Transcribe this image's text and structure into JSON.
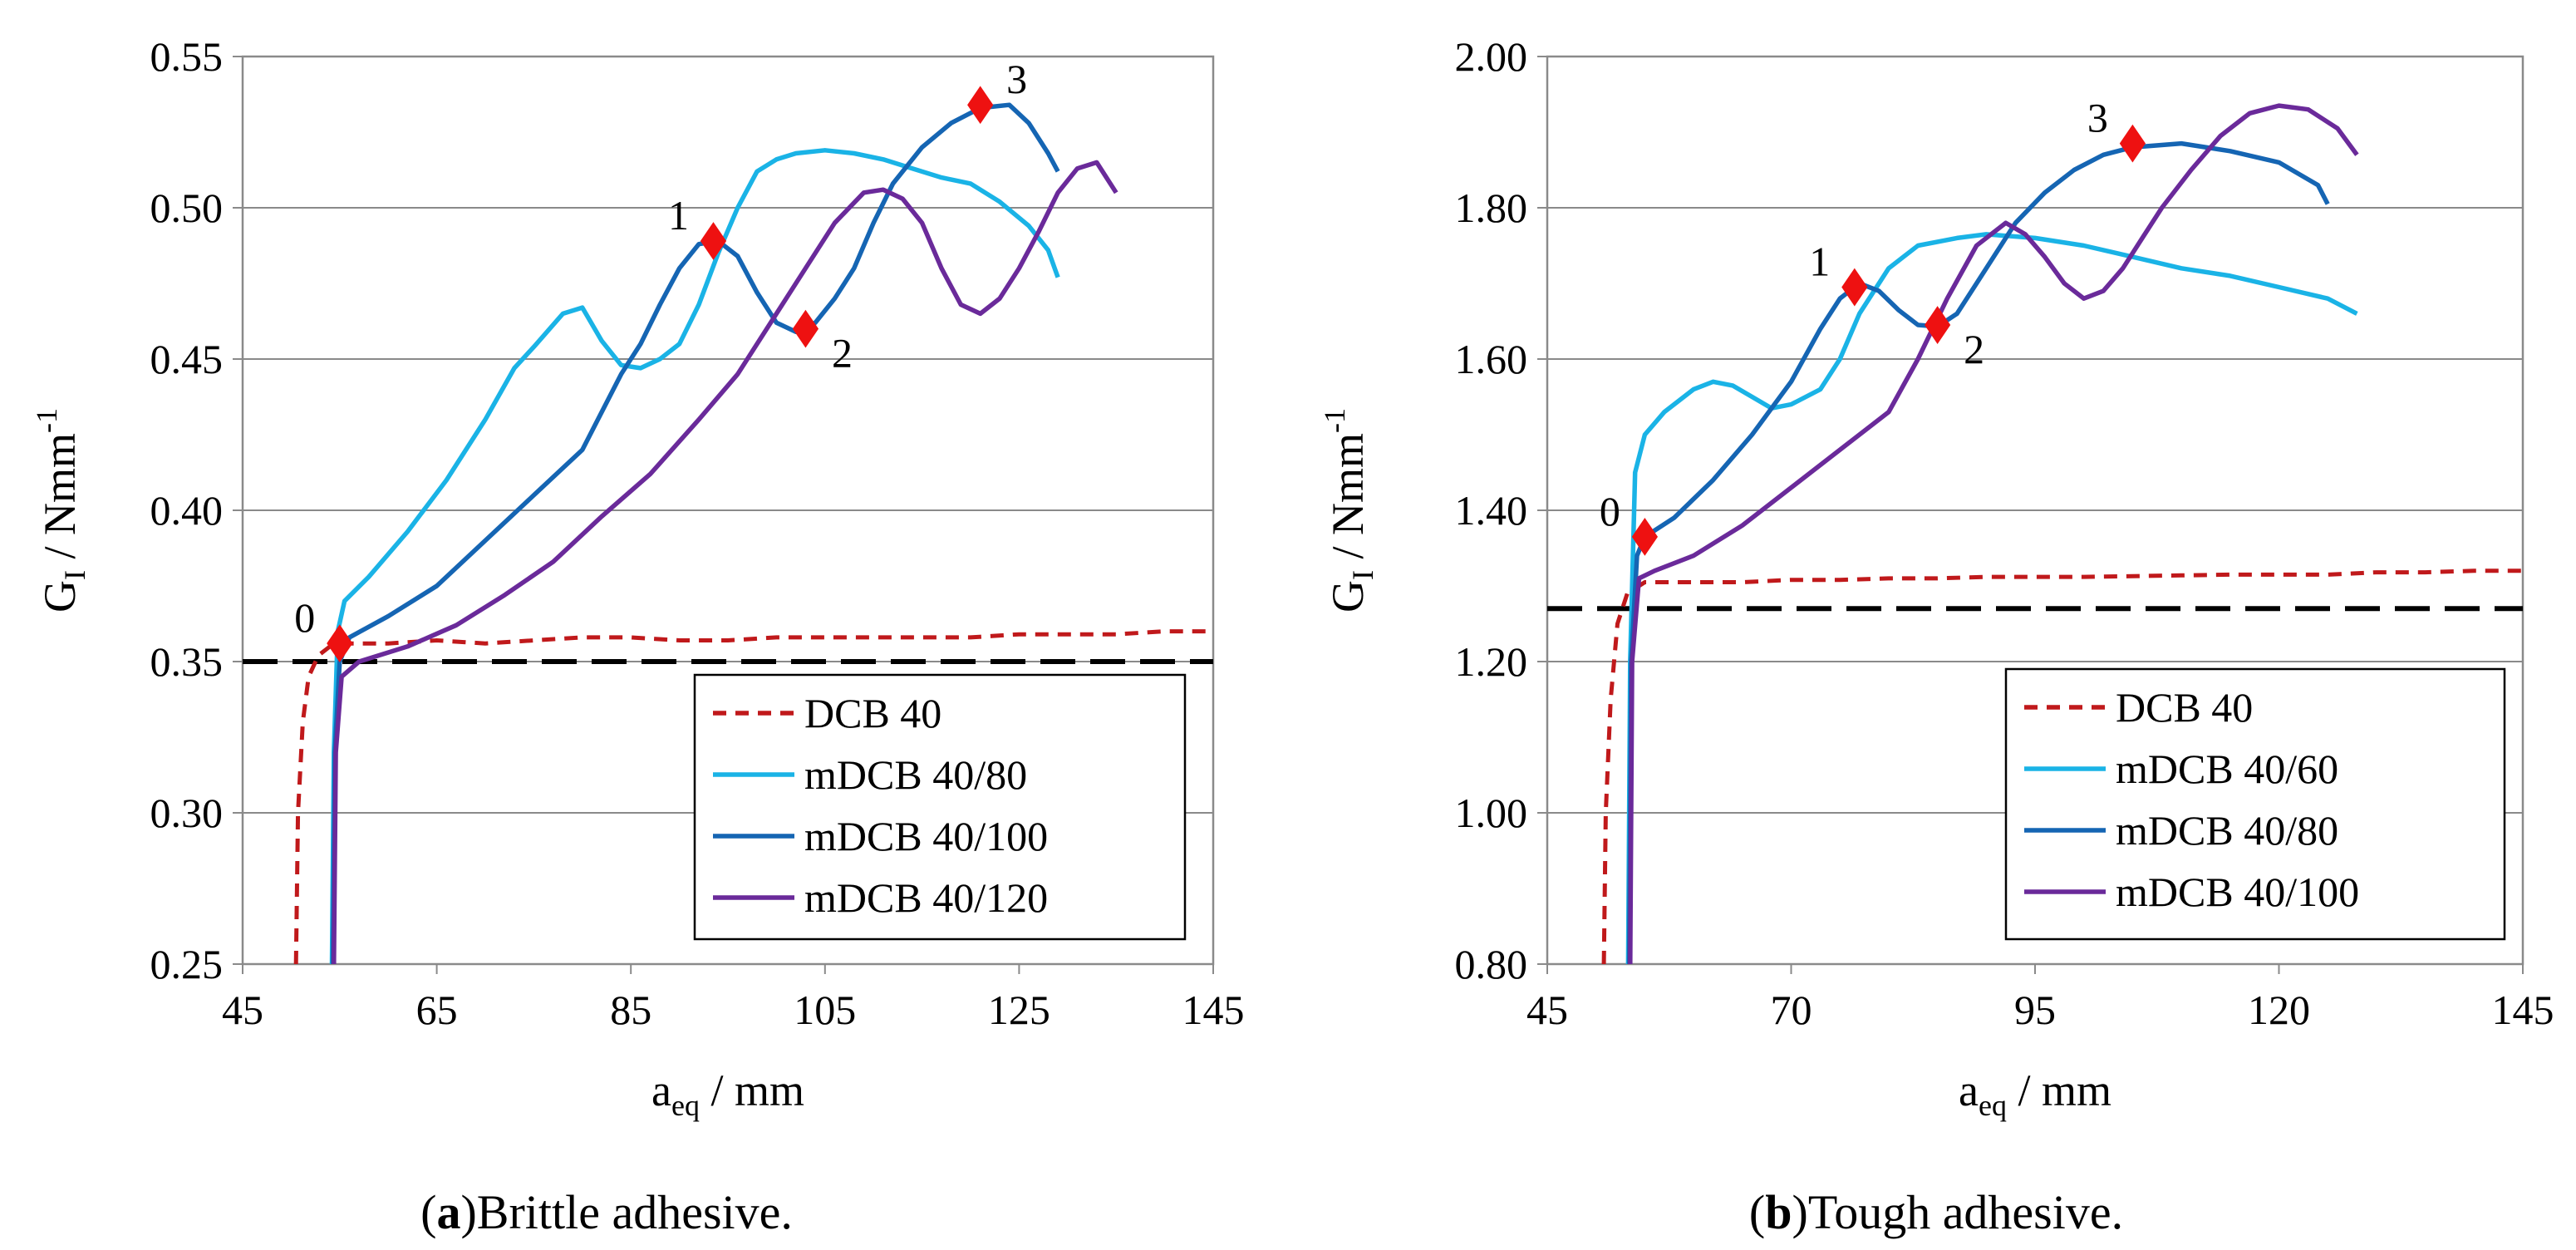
{
  "chart_data": [
    {
      "type": "line",
      "caption_letter": "a",
      "caption_text": "Brittle adhesive.",
      "xlabel": "a",
      "xlabel_sub": "eq",
      "xlabel_unit": " / mm",
      "ylabel": "G",
      "ylabel_sub": "I",
      "ylabel_unit": " / Nmm",
      "ylabel_sup": "-1",
      "xlim": [
        45,
        145
      ],
      "ylim": [
        0.25,
        0.55
      ],
      "xticks": [
        45,
        65,
        85,
        105,
        125,
        145
      ],
      "yticks": [
        "0.25",
        "0.30",
        "0.35",
        "0.40",
        "0.45",
        "0.50",
        "0.55"
      ],
      "grid": "horizontal",
      "legend_position": "bottom-right",
      "reference_line": 0.35,
      "series": [
        {
          "name": "DCB 40",
          "color": "#c0191b",
          "dash": "dashed",
          "points": [
            [
              50.5,
              0.25
            ],
            [
              50.7,
              0.3
            ],
            [
              51.2,
              0.33
            ],
            [
              51.8,
              0.345
            ],
            [
              52.8,
              0.352
            ],
            [
              54,
              0.355
            ],
            [
              56,
              0.356
            ],
            [
              60,
              0.356
            ],
            [
              65,
              0.357
            ],
            [
              70,
              0.356
            ],
            [
              75,
              0.357
            ],
            [
              80,
              0.358
            ],
            [
              85,
              0.358
            ],
            [
              90,
              0.357
            ],
            [
              95,
              0.357
            ],
            [
              100,
              0.358
            ],
            [
              105,
              0.358
            ],
            [
              110,
              0.358
            ],
            [
              115,
              0.358
            ],
            [
              120,
              0.358
            ],
            [
              125,
              0.359
            ],
            [
              130,
              0.359
            ],
            [
              135,
              0.359
            ],
            [
              140,
              0.36
            ],
            [
              145,
              0.36
            ]
          ]
        },
        {
          "name": "mDCB 40/80",
          "color": "#1ab3e6",
          "dash": "solid",
          "points": [
            [
              54.2,
              0.25
            ],
            [
              54.4,
              0.32
            ],
            [
              54.8,
              0.36
            ],
            [
              55.5,
              0.37
            ],
            [
              58,
              0.378
            ],
            [
              62,
              0.393
            ],
            [
              66,
              0.41
            ],
            [
              70,
              0.43
            ],
            [
              73,
              0.447
            ],
            [
              75,
              0.454
            ],
            [
              78,
              0.465
            ],
            [
              80,
              0.467
            ],
            [
              82,
              0.456
            ],
            [
              84,
              0.448
            ],
            [
              86,
              0.447
            ],
            [
              88,
              0.45
            ],
            [
              90,
              0.455
            ],
            [
              92,
              0.468
            ],
            [
              94,
              0.485
            ],
            [
              96,
              0.5
            ],
            [
              98,
              0.512
            ],
            [
              100,
              0.516
            ],
            [
              102,
              0.518
            ],
            [
              105,
              0.519
            ],
            [
              108,
              0.518
            ],
            [
              111,
              0.516
            ],
            [
              114,
              0.513
            ],
            [
              117,
              0.51
            ],
            [
              120,
              0.508
            ],
            [
              123,
              0.502
            ],
            [
              126,
              0.494
            ],
            [
              128,
              0.486
            ],
            [
              129,
              0.477
            ]
          ]
        },
        {
          "name": "mDCB 40/100",
          "color": "#1565b3",
          "dash": "solid",
          "points": [
            [
              54.3,
              0.25
            ],
            [
              54.5,
              0.32
            ],
            [
              55,
              0.35
            ],
            [
              56,
              0.358
            ],
            [
              60,
              0.365
            ],
            [
              65,
              0.375
            ],
            [
              70,
              0.39
            ],
            [
              75,
              0.405
            ],
            [
              80,
              0.42
            ],
            [
              84,
              0.445
            ],
            [
              86,
              0.455
            ],
            [
              88,
              0.468
            ],
            [
              90,
              0.48
            ],
            [
              92,
              0.488
            ],
            [
              94,
              0.489
            ],
            [
              96,
              0.484
            ],
            [
              98,
              0.472
            ],
            [
              100,
              0.462
            ],
            [
              102,
              0.459
            ],
            [
              104,
              0.462
            ],
            [
              106,
              0.47
            ],
            [
              108,
              0.48
            ],
            [
              110,
              0.495
            ],
            [
              112,
              0.508
            ],
            [
              115,
              0.52
            ],
            [
              118,
              0.528
            ],
            [
              121,
              0.533
            ],
            [
              124,
              0.534
            ],
            [
              126,
              0.528
            ],
            [
              128,
              0.518
            ],
            [
              129,
              0.512
            ]
          ]
        },
        {
          "name": "mDCB 40/120",
          "color": "#6a2a9a",
          "dash": "solid",
          "points": [
            [
              54.4,
              0.25
            ],
            [
              54.6,
              0.32
            ],
            [
              55.2,
              0.345
            ],
            [
              57,
              0.35
            ],
            [
              62,
              0.355
            ],
            [
              67,
              0.362
            ],
            [
              72,
              0.372
            ],
            [
              77,
              0.383
            ],
            [
              82,
              0.398
            ],
            [
              87,
              0.412
            ],
            [
              92,
              0.43
            ],
            [
              96,
              0.445
            ],
            [
              100,
              0.465
            ],
            [
              103,
              0.48
            ],
            [
              106,
              0.495
            ],
            [
              109,
              0.505
            ],
            [
              111,
              0.506
            ],
            [
              113,
              0.503
            ],
            [
              115,
              0.495
            ],
            [
              117,
              0.48
            ],
            [
              119,
              0.468
            ],
            [
              121,
              0.465
            ],
            [
              123,
              0.47
            ],
            [
              125,
              0.48
            ],
            [
              127,
              0.492
            ],
            [
              129,
              0.505
            ],
            [
              131,
              0.513
            ],
            [
              133,
              0.515
            ],
            [
              134,
              0.51
            ],
            [
              135,
              0.505
            ]
          ]
        }
      ],
      "markers": [
        {
          "label": "0",
          "x": 55,
          "y": 0.356,
          "label_side": "left"
        },
        {
          "label": "1",
          "x": 93.5,
          "y": 0.489,
          "label_side": "left"
        },
        {
          "label": "2",
          "x": 103,
          "y": 0.46,
          "label_side": "right"
        },
        {
          "label": "3",
          "x": 121,
          "y": 0.534,
          "label_side": "right"
        }
      ]
    },
    {
      "type": "line",
      "caption_letter": "b",
      "caption_text": "Tough adhesive.",
      "xlabel": "a",
      "xlabel_sub": "eq",
      "xlabel_unit": " / mm",
      "ylabel": "G",
      "ylabel_sub": "I",
      "ylabel_unit": " / Nmm",
      "ylabel_sup": "-1",
      "xlim": [
        45,
        145
      ],
      "ylim": [
        0.8,
        2.0
      ],
      "xticks": [
        45,
        70,
        95,
        120,
        145
      ],
      "yticks": [
        "0.80",
        "1.00",
        "1.20",
        "1.40",
        "1.60",
        "1.80",
        "2.00"
      ],
      "grid": "horizontal",
      "legend_position": "bottom-right",
      "reference_line": 1.27,
      "series": [
        {
          "name": "DCB 40",
          "color": "#c0191b",
          "dash": "dashed",
          "points": [
            [
              50.8,
              0.8
            ],
            [
              51,
              1.0
            ],
            [
              51.5,
              1.15
            ],
            [
              52.2,
              1.25
            ],
            [
              53.2,
              1.29
            ],
            [
              55,
              1.305
            ],
            [
              60,
              1.305
            ],
            [
              65,
              1.305
            ],
            [
              70,
              1.308
            ],
            [
              75,
              1.308
            ],
            [
              80,
              1.31
            ],
            [
              85,
              1.31
            ],
            [
              90,
              1.312
            ],
            [
              95,
              1.312
            ],
            [
              100,
              1.312
            ],
            [
              105,
              1.313
            ],
            [
              110,
              1.314
            ],
            [
              115,
              1.315
            ],
            [
              120,
              1.315
            ],
            [
              125,
              1.315
            ],
            [
              130,
              1.318
            ],
            [
              135,
              1.318
            ],
            [
              140,
              1.32
            ],
            [
              145,
              1.32
            ]
          ]
        },
        {
          "name": "mDCB 40/60",
          "color": "#1ab3e6",
          "dash": "solid",
          "points": [
            [
              53.3,
              0.8
            ],
            [
              53.5,
              1.2
            ],
            [
              54,
              1.45
            ],
            [
              55,
              1.5
            ],
            [
              57,
              1.53
            ],
            [
              60,
              1.56
            ],
            [
              62,
              1.57
            ],
            [
              64,
              1.565
            ],
            [
              66,
              1.55
            ],
            [
              68,
              1.535
            ],
            [
              70,
              1.54
            ],
            [
              73,
              1.56
            ],
            [
              75,
              1.6
            ],
            [
              77,
              1.66
            ],
            [
              80,
              1.72
            ],
            [
              83,
              1.75
            ],
            [
              87,
              1.76
            ],
            [
              90,
              1.765
            ],
            [
              95,
              1.76
            ],
            [
              100,
              1.75
            ],
            [
              105,
              1.735
            ],
            [
              110,
              1.72
            ],
            [
              115,
              1.71
            ],
            [
              120,
              1.695
            ],
            [
              125,
              1.68
            ],
            [
              128,
              1.66
            ]
          ]
        },
        {
          "name": "mDCB 40/80",
          "color": "#1565b3",
          "dash": "solid",
          "points": [
            [
              53.4,
              0.8
            ],
            [
              53.6,
              1.2
            ],
            [
              54.2,
              1.34
            ],
            [
              55,
              1.365
            ],
            [
              58,
              1.39
            ],
            [
              62,
              1.44
            ],
            [
              66,
              1.5
            ],
            [
              70,
              1.57
            ],
            [
              73,
              1.64
            ],
            [
              75,
              1.68
            ],
            [
              77,
              1.7
            ],
            [
              79,
              1.69
            ],
            [
              81,
              1.665
            ],
            [
              83,
              1.645
            ],
            [
              85,
              1.643
            ],
            [
              87,
              1.66
            ],
            [
              89,
              1.7
            ],
            [
              91,
              1.74
            ],
            [
              93,
              1.78
            ],
            [
              96,
              1.82
            ],
            [
              99,
              1.85
            ],
            [
              102,
              1.87
            ],
            [
              105,
              1.88
            ],
            [
              110,
              1.885
            ],
            [
              115,
              1.875
            ],
            [
              120,
              1.86
            ],
            [
              124,
              1.83
            ],
            [
              125,
              1.805
            ]
          ]
        },
        {
          "name": "mDCB 40/100",
          "color": "#6a2a9a",
          "dash": "solid",
          "points": [
            [
              53.5,
              0.8
            ],
            [
              53.7,
              1.2
            ],
            [
              54.4,
              1.31
            ],
            [
              56,
              1.32
            ],
            [
              60,
              1.34
            ],
            [
              65,
              1.38
            ],
            [
              70,
              1.43
            ],
            [
              75,
              1.48
            ],
            [
              80,
              1.53
            ],
            [
              83,
              1.6
            ],
            [
              86,
              1.68
            ],
            [
              89,
              1.75
            ],
            [
              92,
              1.78
            ],
            [
              94,
              1.765
            ],
            [
              96,
              1.735
            ],
            [
              98,
              1.7
            ],
            [
              100,
              1.68
            ],
            [
              102,
              1.69
            ],
            [
              104,
              1.72
            ],
            [
              106,
              1.76
            ],
            [
              108,
              1.8
            ],
            [
              111,
              1.85
            ],
            [
              114,
              1.895
            ],
            [
              117,
              1.925
            ],
            [
              120,
              1.935
            ],
            [
              123,
              1.93
            ],
            [
              126,
              1.905
            ],
            [
              128,
              1.87
            ]
          ]
        }
      ],
      "markers": [
        {
          "label": "0",
          "x": 55,
          "y": 1.365,
          "label_side": "left"
        },
        {
          "label": "1",
          "x": 76.5,
          "y": 1.695,
          "label_side": "left"
        },
        {
          "label": "2",
          "x": 85,
          "y": 1.645,
          "label_side": "right"
        },
        {
          "label": "3",
          "x": 105,
          "y": 1.885,
          "label_side": "left"
        }
      ]
    }
  ]
}
